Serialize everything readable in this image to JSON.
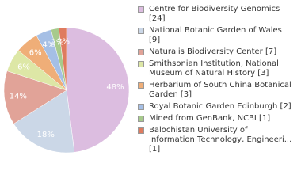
{
  "chart_data": {
    "type": "pie",
    "categories": [
      "Centre for Biodiversity Genomics [24]",
      "National Botanic Garden of Wales [9]",
      "Naturalis Biodiversity Center [7]",
      "Smithsonian Institution, National Museum of Natural History [3]",
      "Herbarium of South China Botanical Garden [3]",
      "Royal Botanic Garden Edinburgh [2]",
      "Mined from GenBank, NCBI [1]",
      "Balochistan University of Information Technology, Engineeri... [1]"
    ],
    "values": [
      48,
      18,
      14,
      6,
      6,
      4,
      2,
      2
    ],
    "value_labels": [
      "48%",
      "18%",
      "14%",
      "6%",
      "6%",
      "4%",
      "2%",
      "2%"
    ],
    "colors": [
      "#dcbde0",
      "#cbd7e7",
      "#e1a398",
      "#dde7a6",
      "#efae78",
      "#a5bfe5",
      "#a7ca8c",
      "#df7b5f"
    ]
  }
}
